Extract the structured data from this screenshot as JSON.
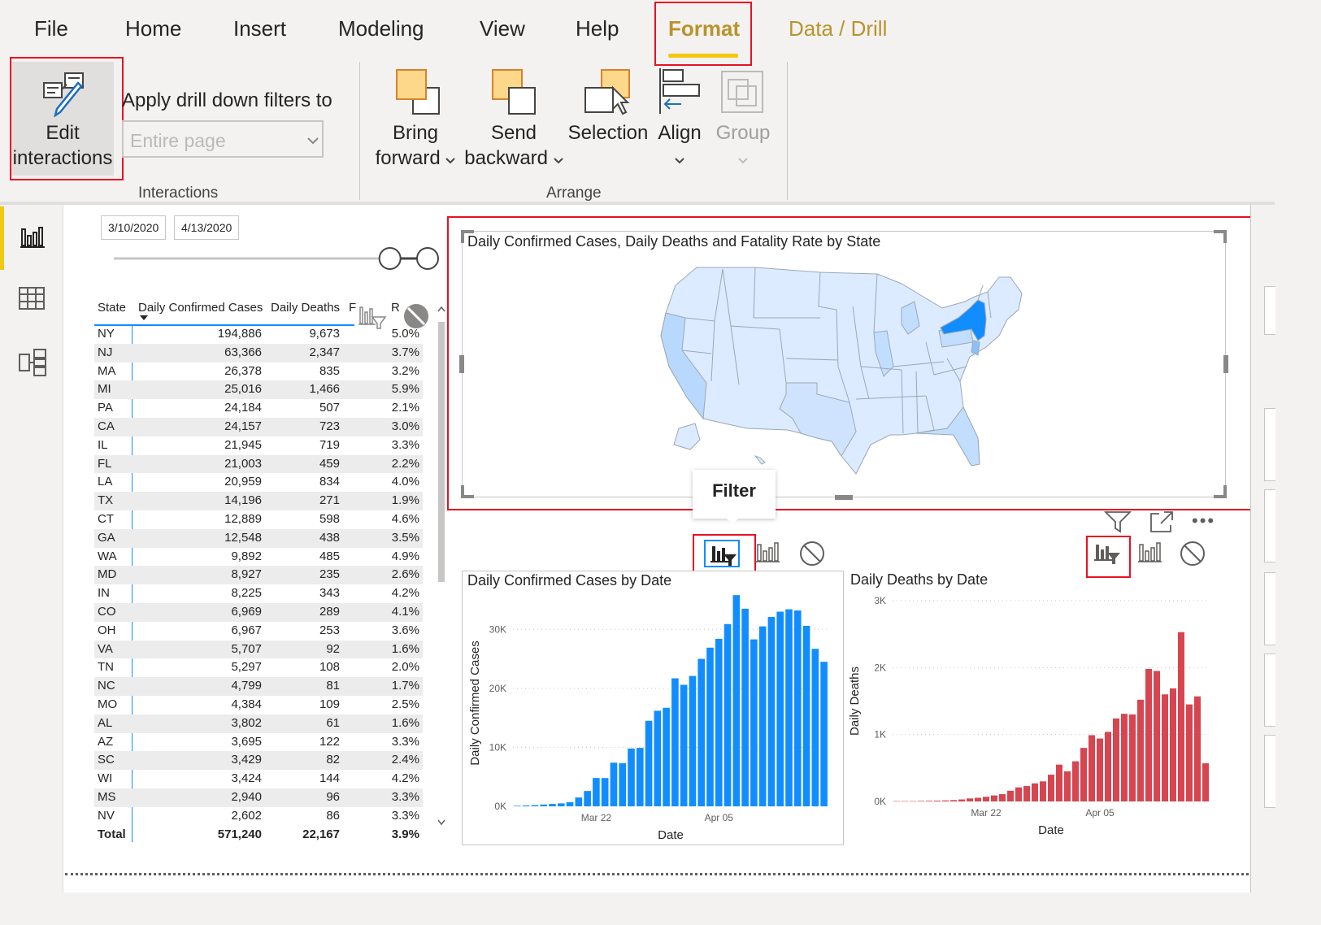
{
  "tabs": [
    {
      "label": "File",
      "style": "normal"
    },
    {
      "label": "Home",
      "style": "normal"
    },
    {
      "label": "Insert",
      "style": "normal"
    },
    {
      "label": "Modeling",
      "style": "normal"
    },
    {
      "label": "View",
      "style": "normal"
    },
    {
      "label": "Help",
      "style": "normal"
    },
    {
      "label": "Format",
      "style": "active"
    },
    {
      "label": "Data / Drill",
      "style": "gold"
    }
  ],
  "ribbon": {
    "edit_interactions": [
      "Edit",
      "interactions"
    ],
    "apply_drill_label": "Apply drill down filters to",
    "drill_select_value": "Entire page",
    "bring_forward": [
      "Bring",
      "forward"
    ],
    "send_backward": [
      "Send",
      "backward"
    ],
    "selection": "Selection",
    "align": "Align",
    "group": "Group",
    "group_interactions": "Interactions",
    "group_arrange": "Arrange"
  },
  "slicer": {
    "start": "3/10/2020",
    "end": "4/13/2020",
    "range": [
      0.88,
      1.0
    ]
  },
  "table": {
    "headers": [
      "State",
      "Daily Confirmed Cases",
      "Daily Deaths",
      "F",
      "R"
    ],
    "rows": [
      [
        "NY",
        "194,886",
        "9,673",
        "5.0%"
      ],
      [
        "NJ",
        "63,366",
        "2,347",
        "3.7%"
      ],
      [
        "MA",
        "26,378",
        "835",
        "3.2%"
      ],
      [
        "MI",
        "25,016",
        "1,466",
        "5.9%"
      ],
      [
        "PA",
        "24,184",
        "507",
        "2.1%"
      ],
      [
        "CA",
        "24,157",
        "723",
        "3.0%"
      ],
      [
        "IL",
        "21,945",
        "719",
        "3.3%"
      ],
      [
        "FL",
        "21,003",
        "459",
        "2.2%"
      ],
      [
        "LA",
        "20,959",
        "834",
        "4.0%"
      ],
      [
        "TX",
        "14,196",
        "271",
        "1.9%"
      ],
      [
        "CT",
        "12,889",
        "598",
        "4.6%"
      ],
      [
        "GA",
        "12,548",
        "438",
        "3.5%"
      ],
      [
        "WA",
        "9,892",
        "485",
        "4.9%"
      ],
      [
        "MD",
        "8,927",
        "235",
        "2.6%"
      ],
      [
        "IN",
        "8,225",
        "343",
        "4.2%"
      ],
      [
        "CO",
        "6,969",
        "289",
        "4.1%"
      ],
      [
        "OH",
        "6,967",
        "253",
        "3.6%"
      ],
      [
        "VA",
        "5,707",
        "92",
        "1.6%"
      ],
      [
        "TN",
        "5,297",
        "108",
        "2.0%"
      ],
      [
        "NC",
        "4,799",
        "81",
        "1.7%"
      ],
      [
        "MO",
        "4,384",
        "109",
        "2.5%"
      ],
      [
        "AL",
        "3,802",
        "61",
        "1.6%"
      ],
      [
        "AZ",
        "3,695",
        "122",
        "3.3%"
      ],
      [
        "SC",
        "3,429",
        "82",
        "2.4%"
      ],
      [
        "WI",
        "3,424",
        "144",
        "4.2%"
      ],
      [
        "MS",
        "2,940",
        "96",
        "3.3%"
      ],
      [
        "NV",
        "2,602",
        "86",
        "3.3%"
      ]
    ],
    "total": [
      "Total",
      "571,240",
      "22,167",
      "3.9%"
    ]
  },
  "map": {
    "title": "Daily Confirmed Cases, Daily Deaths and Fatality Rate by State",
    "highlight_color": "#118dff"
  },
  "tooltip": "Filter",
  "chart_data": [
    {
      "type": "bar",
      "title": "Daily Confirmed Cases by Date",
      "xlabel": "Date",
      "ylabel": "Daily Confirmed Cases",
      "ylim": [
        0,
        35000
      ],
      "yticks": [
        "0K",
        "10K",
        "20K",
        "30K"
      ],
      "xticks": [
        "Mar 22",
        "Apr 05"
      ],
      "color": "#118dff",
      "values": [
        100,
        150,
        200,
        300,
        400,
        500,
        700,
        1500,
        2600,
        4800,
        4800,
        7400,
        7300,
        9800,
        9900,
        14500,
        16200,
        16700,
        21700,
        20600,
        22100,
        25000,
        26900,
        28400,
        30900,
        35800,
        33500,
        28300,
        30500,
        32100,
        33000,
        33400,
        33200,
        30600,
        26700,
        24500
      ]
    },
    {
      "type": "bar",
      "title": "Daily Deaths by Date",
      "xlabel": "Date",
      "ylabel": "Daily Deaths",
      "ylim": [
        0,
        3000
      ],
      "yticks": [
        "0K",
        "1K",
        "2K",
        "3K"
      ],
      "xticks": [
        "Mar 22",
        "Apr 05"
      ],
      "color": "#d64550",
      "values": [
        5,
        5,
        5,
        8,
        10,
        12,
        15,
        20,
        30,
        45,
        55,
        70,
        90,
        110,
        160,
        210,
        230,
        270,
        300,
        400,
        550,
        450,
        600,
        800,
        990,
        940,
        1040,
        1240,
        1310,
        1300,
        1520,
        1980,
        1950,
        1600,
        1690,
        2530,
        1450,
        1570,
        570
      ]
    }
  ]
}
